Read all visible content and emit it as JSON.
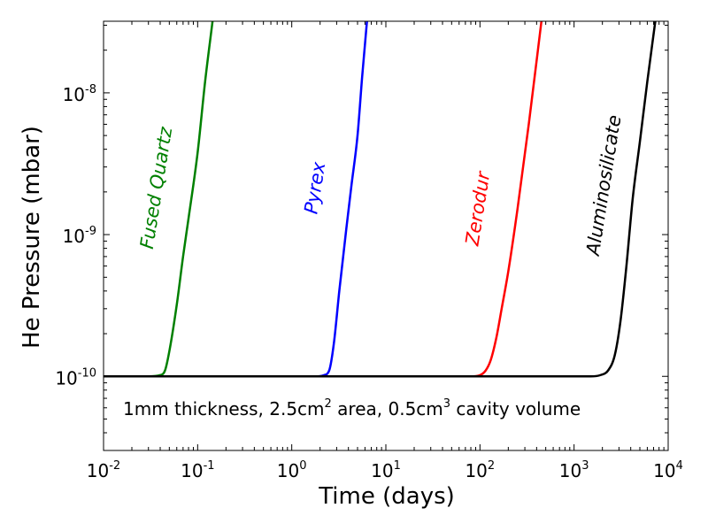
{
  "chart_data": {
    "type": "line",
    "title": "",
    "xlabel": "Time (days)",
    "ylabel": "He Pressure (mbar)",
    "xscale": "log",
    "yscale": "log",
    "xlim": [
      0.01,
      10000
    ],
    "ylim": [
      3e-11,
      3.2e-08
    ],
    "grid": false,
    "x_ticks": [
      {
        "base": "10",
        "exp": "-2",
        "value": 0.01
      },
      {
        "base": "10",
        "exp": "-1",
        "value": 0.1
      },
      {
        "base": "10",
        "exp": "0",
        "value": 1
      },
      {
        "base": "10",
        "exp": "1",
        "value": 10
      },
      {
        "base": "10",
        "exp": "2",
        "value": 100
      },
      {
        "base": "10",
        "exp": "3",
        "value": 1000
      },
      {
        "base": "10",
        "exp": "4",
        "value": 10000
      }
    ],
    "y_ticks": [
      {
        "base": "10",
        "exp": "-10",
        "value": 1e-10
      },
      {
        "base": "10",
        "exp": "-9",
        "value": 1e-09
      },
      {
        "base": "10",
        "exp": "-8",
        "value": 1e-08
      }
    ],
    "baseline_pressure": 1e-10,
    "series": [
      {
        "name": "Fused Quartz",
        "color": "#008000",
        "x": [
          0.01,
          0.03,
          0.04,
          0.045,
          0.05,
          0.06,
          0.07,
          0.08,
          0.1,
          0.12,
          0.144
        ],
        "y": [
          1e-10,
          1e-10,
          1.02e-10,
          1.1e-10,
          1.5e-10,
          3.2e-10,
          7e-10,
          1.3e-09,
          3.8e-09,
          1.2e-08,
          3.2e-08
        ]
      },
      {
        "name": "Pyrex",
        "color": "#0000ff",
        "x": [
          0.01,
          1.8,
          2.2,
          2.5,
          2.8,
          3.2,
          3.8,
          4.3,
          5,
          5.6,
          6.3
        ],
        "y": [
          1e-10,
          1e-10,
          1.02e-10,
          1.1e-10,
          1.7e-10,
          4e-10,
          1.1e-09,
          2.2e-09,
          5e-09,
          1.3e-08,
          3.2e-08
        ]
      },
      {
        "name": "Zerodur",
        "color": "#ff0000",
        "x": [
          0.01,
          80,
          100,
          115,
          130,
          150,
          170,
          200,
          250,
          330,
          450
        ],
        "y": [
          1e-10,
          1e-10,
          1.02e-10,
          1.1e-10,
          1.3e-10,
          1.9e-10,
          3e-10,
          5.5e-10,
          1.5e-09,
          6e-09,
          3.2e-08
        ]
      },
      {
        "name": "Aluminosilicate",
        "color": "#000000",
        "x": [
          0.01,
          1500,
          1900,
          2300,
          2700,
          3100,
          3600,
          4200,
          5000,
          6000,
          7300
        ],
        "y": [
          1e-10,
          1e-10,
          1.02e-10,
          1.1e-10,
          1.4e-10,
          2.4e-10,
          6e-10,
          1.8e-09,
          4.5e-09,
          1.2e-08,
          3.2e-08
        ]
      }
    ],
    "annotations": {
      "part1": "1mm thickness, 2.5cm",
      "sup1": "2",
      "part2": " area, 0.5cm",
      "sup2": "3",
      "part3": " cavity volume"
    }
  }
}
